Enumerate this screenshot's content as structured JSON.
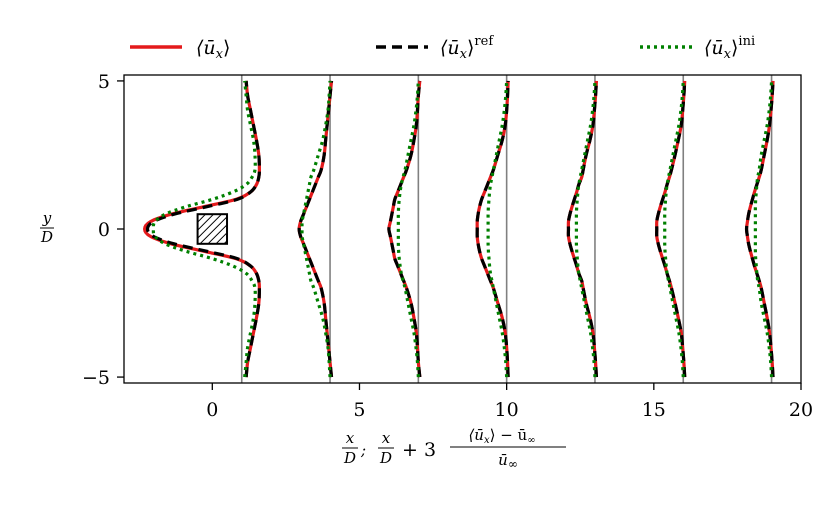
{
  "chart_data": {
    "type": "line",
    "title": "",
    "xlabel": "x/D;  x/D + 3 (⟨ū_x⟩ − ū_∞)/ū_∞",
    "ylabel": "y/D",
    "xlim": [
      -3,
      20
    ],
    "ylim": [
      -5.2,
      5.2
    ],
    "xticks": [
      "0",
      "5",
      "10",
      "15",
      "20"
    ],
    "xtick_values": [
      0,
      5,
      10,
      15,
      20
    ],
    "yticks": [
      "−5",
      "0",
      "5"
    ],
    "ytick_values": [
      -5,
      0,
      5
    ],
    "grid": false,
    "legend_position": "top",
    "legend": [
      "⟨ū_x⟩",
      "⟨ū_x⟩^ref",
      "⟨ū_x⟩^ini"
    ],
    "legend_labels": {
      "base": "⟨ū",
      "sub": "x",
      "close": "⟩",
      "sup_ref": "ref",
      "sup_ini": "ini"
    },
    "colors": {
      "mean": "#e41a1c",
      "ref": "#000000",
      "ini": "#008000",
      "station": "#808080"
    },
    "obstacle": {
      "x": [
        -0.5,
        0.5
      ],
      "y": [
        -0.5,
        0.5
      ],
      "hatched": true
    },
    "stations_x": [
      1,
      4,
      7,
      10,
      13,
      16,
      19
    ],
    "y": [
      -5,
      -4.5,
      -4,
      -3.5,
      -3,
      -2.5,
      -2,
      -1.75,
      -1.5,
      -1.25,
      -1,
      -0.75,
      -0.5,
      -0.25,
      0,
      0.25,
      0.5,
      0.75,
      1,
      1.25,
      1.5,
      1.75,
      2,
      2.5,
      3,
      3.5,
      4,
      4.5,
      5
    ],
    "series": [
      {
        "name": "⟨ū_x⟩",
        "profiles": [
          [
            1.15,
            1.2,
            1.3,
            1.4,
            1.5,
            1.58,
            1.6,
            1.58,
            1.5,
            1.3,
            0.8,
            -0.3,
            -1.4,
            -2.1,
            -2.3,
            -2.1,
            -1.4,
            -0.3,
            0.8,
            1.3,
            1.5,
            1.58,
            1.6,
            1.58,
            1.5,
            1.4,
            1.3,
            1.2,
            1.15
          ],
          [
            4.05,
            4.0,
            3.95,
            3.9,
            3.85,
            3.8,
            3.7,
            3.6,
            3.5,
            3.4,
            3.3,
            3.2,
            3.1,
            3.0,
            2.95,
            3.0,
            3.1,
            3.2,
            3.3,
            3.4,
            3.5,
            3.6,
            3.7,
            3.8,
            3.85,
            3.9,
            3.95,
            4.0,
            4.05
          ],
          [
            7.05,
            7.0,
            6.97,
            6.93,
            6.85,
            6.75,
            6.6,
            6.5,
            6.4,
            6.3,
            6.2,
            6.15,
            6.1,
            6.05,
            6.0,
            6.05,
            6.1,
            6.15,
            6.2,
            6.3,
            6.4,
            6.5,
            6.6,
            6.75,
            6.85,
            6.93,
            6.97,
            7.0,
            7.05
          ],
          [
            10.05,
            10.03,
            10.0,
            9.95,
            9.85,
            9.7,
            9.55,
            9.45,
            9.35,
            9.25,
            9.15,
            9.08,
            9.03,
            9.0,
            9.0,
            9.0,
            9.03,
            9.08,
            9.15,
            9.25,
            9.35,
            9.45,
            9.55,
            9.7,
            9.85,
            9.95,
            10.0,
            10.03,
            10.05
          ],
          [
            13.05,
            13.02,
            12.98,
            12.93,
            12.83,
            12.7,
            12.6,
            12.55,
            12.45,
            12.38,
            12.3,
            12.22,
            12.15,
            12.1,
            12.1,
            12.1,
            12.15,
            12.22,
            12.3,
            12.38,
            12.45,
            12.55,
            12.6,
            12.7,
            12.83,
            12.93,
            12.98,
            13.02,
            13.05
          ],
          [
            16.05,
            16.02,
            15.98,
            15.93,
            15.83,
            15.72,
            15.6,
            15.53,
            15.45,
            15.38,
            15.3,
            15.22,
            15.15,
            15.1,
            15.1,
            15.1,
            15.15,
            15.22,
            15.3,
            15.38,
            15.45,
            15.53,
            15.6,
            15.72,
            15.83,
            15.93,
            15.98,
            16.02,
            16.05
          ],
          [
            19.05,
            19.02,
            18.98,
            18.93,
            18.85,
            18.75,
            18.65,
            18.58,
            18.5,
            18.42,
            18.35,
            18.28,
            18.22,
            18.18,
            18.15,
            18.18,
            18.22,
            18.28,
            18.35,
            18.42,
            18.5,
            18.58,
            18.65,
            18.75,
            18.85,
            18.93,
            18.98,
            19.02,
            19.05
          ]
        ]
      },
      {
        "name": "⟨ū_x⟩^ref",
        "profiles": [
          [
            1.15,
            1.2,
            1.3,
            1.4,
            1.5,
            1.58,
            1.6,
            1.58,
            1.5,
            1.3,
            0.85,
            -0.2,
            -1.3,
            -2.0,
            -2.2,
            -2.0,
            -1.3,
            -0.2,
            0.85,
            1.3,
            1.5,
            1.58,
            1.6,
            1.58,
            1.5,
            1.4,
            1.3,
            1.2,
            1.15
          ],
          [
            4.05,
            4.0,
            3.95,
            3.9,
            3.85,
            3.8,
            3.7,
            3.6,
            3.5,
            3.4,
            3.3,
            3.2,
            3.1,
            3.0,
            2.95,
            3.0,
            3.1,
            3.2,
            3.3,
            3.4,
            3.5,
            3.6,
            3.7,
            3.8,
            3.85,
            3.9,
            3.95,
            4.0,
            4.05
          ],
          [
            7.05,
            7.0,
            6.97,
            6.93,
            6.85,
            6.75,
            6.6,
            6.5,
            6.4,
            6.3,
            6.2,
            6.15,
            6.1,
            6.05,
            6.0,
            6.05,
            6.1,
            6.15,
            6.2,
            6.3,
            6.4,
            6.5,
            6.6,
            6.75,
            6.85,
            6.93,
            6.97,
            7.0,
            7.05
          ],
          [
            10.05,
            10.03,
            10.0,
            9.95,
            9.85,
            9.7,
            9.55,
            9.45,
            9.35,
            9.25,
            9.15,
            9.08,
            9.03,
            9.0,
            9.0,
            9.0,
            9.03,
            9.08,
            9.15,
            9.25,
            9.35,
            9.45,
            9.55,
            9.7,
            9.85,
            9.95,
            10.0,
            10.03,
            10.05
          ],
          [
            13.05,
            13.02,
            12.98,
            12.93,
            12.83,
            12.7,
            12.6,
            12.55,
            12.45,
            12.38,
            12.3,
            12.22,
            12.15,
            12.1,
            12.1,
            12.1,
            12.15,
            12.22,
            12.3,
            12.38,
            12.45,
            12.55,
            12.6,
            12.7,
            12.83,
            12.93,
            12.98,
            13.02,
            13.05
          ],
          [
            16.05,
            16.02,
            15.98,
            15.93,
            15.83,
            15.72,
            15.6,
            15.53,
            15.45,
            15.38,
            15.3,
            15.22,
            15.15,
            15.1,
            15.1,
            15.1,
            15.15,
            15.22,
            15.3,
            15.38,
            15.45,
            15.53,
            15.6,
            15.72,
            15.83,
            15.93,
            15.98,
            16.02,
            16.05
          ],
          [
            19.05,
            19.02,
            18.98,
            18.93,
            18.85,
            18.75,
            18.65,
            18.58,
            18.5,
            18.42,
            18.35,
            18.28,
            18.22,
            18.18,
            18.15,
            18.18,
            18.22,
            18.28,
            18.35,
            18.42,
            18.5,
            18.58,
            18.65,
            18.75,
            18.85,
            18.93,
            18.98,
            19.02,
            19.05
          ]
        ]
      },
      {
        "name": "⟨ū_x⟩^ini",
        "profiles": [
          [
            1.1,
            1.15,
            1.2,
            1.3,
            1.4,
            1.45,
            1.45,
            1.35,
            1.15,
            0.7,
            0.0,
            -0.9,
            -1.6,
            -1.95,
            -2.0,
            -1.95,
            -1.6,
            -0.9,
            0.0,
            0.7,
            1.15,
            1.35,
            1.45,
            1.45,
            1.4,
            1.3,
            1.2,
            1.15,
            1.1
          ],
          [
            4.0,
            3.97,
            3.93,
            3.85,
            3.75,
            3.6,
            3.45,
            3.35,
            3.3,
            3.25,
            3.2,
            3.15,
            3.1,
            3.05,
            3.05,
            3.05,
            3.1,
            3.15,
            3.2,
            3.25,
            3.3,
            3.35,
            3.45,
            3.6,
            3.75,
            3.85,
            3.93,
            3.97,
            4.0
          ],
          [
            7.0,
            6.97,
            6.92,
            6.85,
            6.75,
            6.65,
            6.55,
            6.48,
            6.42,
            6.38,
            6.35,
            6.33,
            6.32,
            6.32,
            6.32,
            6.32,
            6.32,
            6.33,
            6.35,
            6.38,
            6.42,
            6.48,
            6.55,
            6.65,
            6.75,
            6.85,
            6.92,
            6.97,
            7.0
          ],
          [
            10.0,
            9.97,
            9.92,
            9.85,
            9.75,
            9.65,
            9.55,
            9.5,
            9.45,
            9.42,
            9.4,
            9.38,
            9.37,
            9.37,
            9.37,
            9.37,
            9.37,
            9.38,
            9.4,
            9.42,
            9.45,
            9.5,
            9.55,
            9.65,
            9.75,
            9.85,
            9.92,
            9.97,
            10.0
          ],
          [
            13.0,
            12.97,
            12.92,
            12.85,
            12.75,
            12.65,
            12.55,
            12.5,
            12.45,
            12.42,
            12.4,
            12.38,
            12.37,
            12.37,
            12.37,
            12.37,
            12.37,
            12.38,
            12.4,
            12.42,
            12.45,
            12.5,
            12.55,
            12.65,
            12.75,
            12.85,
            12.92,
            12.97,
            13.0
          ],
          [
            16.0,
            15.97,
            15.92,
            15.85,
            15.75,
            15.65,
            15.55,
            15.5,
            15.45,
            15.42,
            15.4,
            15.38,
            15.37,
            15.37,
            15.37,
            15.37,
            15.37,
            15.38,
            15.4,
            15.42,
            15.45,
            15.5,
            15.55,
            15.65,
            15.75,
            15.85,
            15.92,
            15.97,
            16.0
          ],
          [
            19.0,
            18.97,
            18.92,
            18.85,
            18.75,
            18.65,
            18.58,
            18.53,
            18.5,
            18.48,
            18.46,
            18.45,
            18.45,
            18.45,
            18.45,
            18.45,
            18.45,
            18.45,
            18.46,
            18.48,
            18.5,
            18.53,
            18.58,
            18.65,
            18.75,
            18.85,
            18.92,
            18.97,
            19.0
          ]
        ]
      }
    ]
  }
}
